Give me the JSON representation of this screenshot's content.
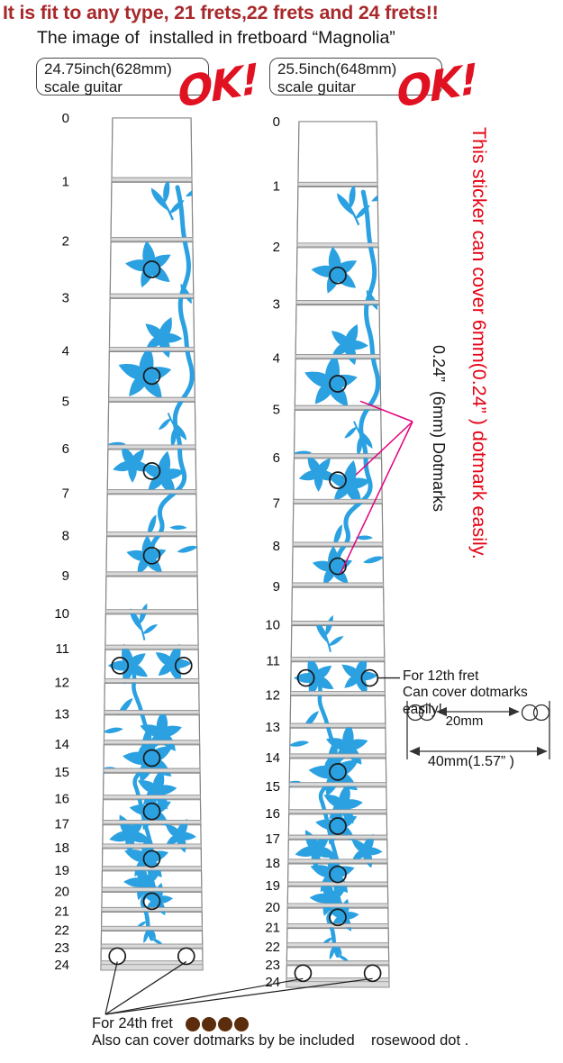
{
  "header": {
    "title": "It is fit to any type, 21 frets,22 frets and 24 frets!!",
    "subtitle": "The image of  installed in fretboard “Magnolia”"
  },
  "colors": {
    "title_red": "#a8292c",
    "bright_red": "#e60315",
    "ok_red": "#e01120",
    "flower_blue": "#2ba1e1",
    "magenta_line": "#e3007f",
    "rosewood_brown": "#5b2d0d",
    "fret_wire_gray": "#dadada"
  },
  "fretboards": [
    {
      "scale_line1": "24.75inch(628mm)",
      "scale_line2": "scale guitar",
      "ok_label": "OK!",
      "fret_numbers": [
        0,
        1,
        2,
        3,
        4,
        5,
        6,
        7,
        8,
        9,
        10,
        11,
        12,
        13,
        14,
        15,
        16,
        17,
        18,
        19,
        20,
        21,
        22,
        23,
        24
      ],
      "single_dot_frets": [
        3,
        5,
        7,
        9,
        15,
        17,
        19,
        21
      ],
      "double_dot_frets": [
        12,
        24
      ]
    },
    {
      "scale_line1": "25.5inch(648mm)",
      "scale_line2": "scale guitar",
      "ok_label": "OK!",
      "fret_numbers": [
        0,
        1,
        2,
        3,
        4,
        5,
        6,
        7,
        8,
        9,
        10,
        11,
        12,
        13,
        14,
        15,
        16,
        17,
        18,
        19,
        20,
        21,
        22,
        23,
        24
      ],
      "single_dot_frets": [
        3,
        5,
        7,
        9,
        15,
        17,
        19,
        21
      ],
      "double_dot_frets": [
        12,
        24
      ]
    }
  ],
  "annotations": {
    "vertical_red_note": "This sticker can cover 6mm(0.24” ) dotmark easily.",
    "vertical_black_note": "0.24”  (6mm) Dotmarks",
    "fret12_note": {
      "line1": "For 12th fret",
      "line2": "Can cover dotmarks easily!"
    },
    "dimension": {
      "inner": "20mm",
      "outer": "40mm(1.57” )"
    },
    "fret24_note": {
      "line1": "For 24th fret",
      "line2": "Also can cover dotmarks by be included    rosewood dot .",
      "rosewood_dot_count": 4
    }
  }
}
